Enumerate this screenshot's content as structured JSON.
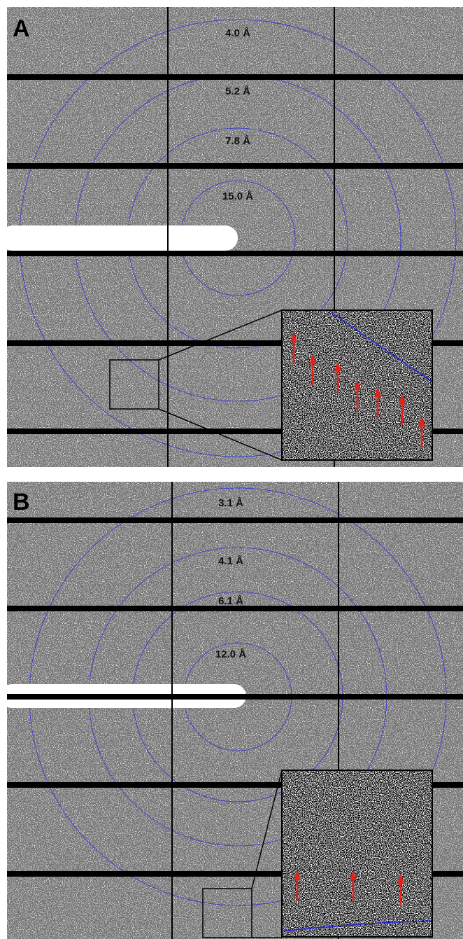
{
  "panels": [
    {
      "label": "A",
      "rings": [
        "4.0 Å",
        "5.2 Å",
        "7.8 Å",
        "15.0 Å"
      ]
    },
    {
      "label": "B",
      "rings": [
        "3.1 Å",
        "4.1 Å",
        "6.1 Å",
        "12.0 Å"
      ]
    }
  ]
}
